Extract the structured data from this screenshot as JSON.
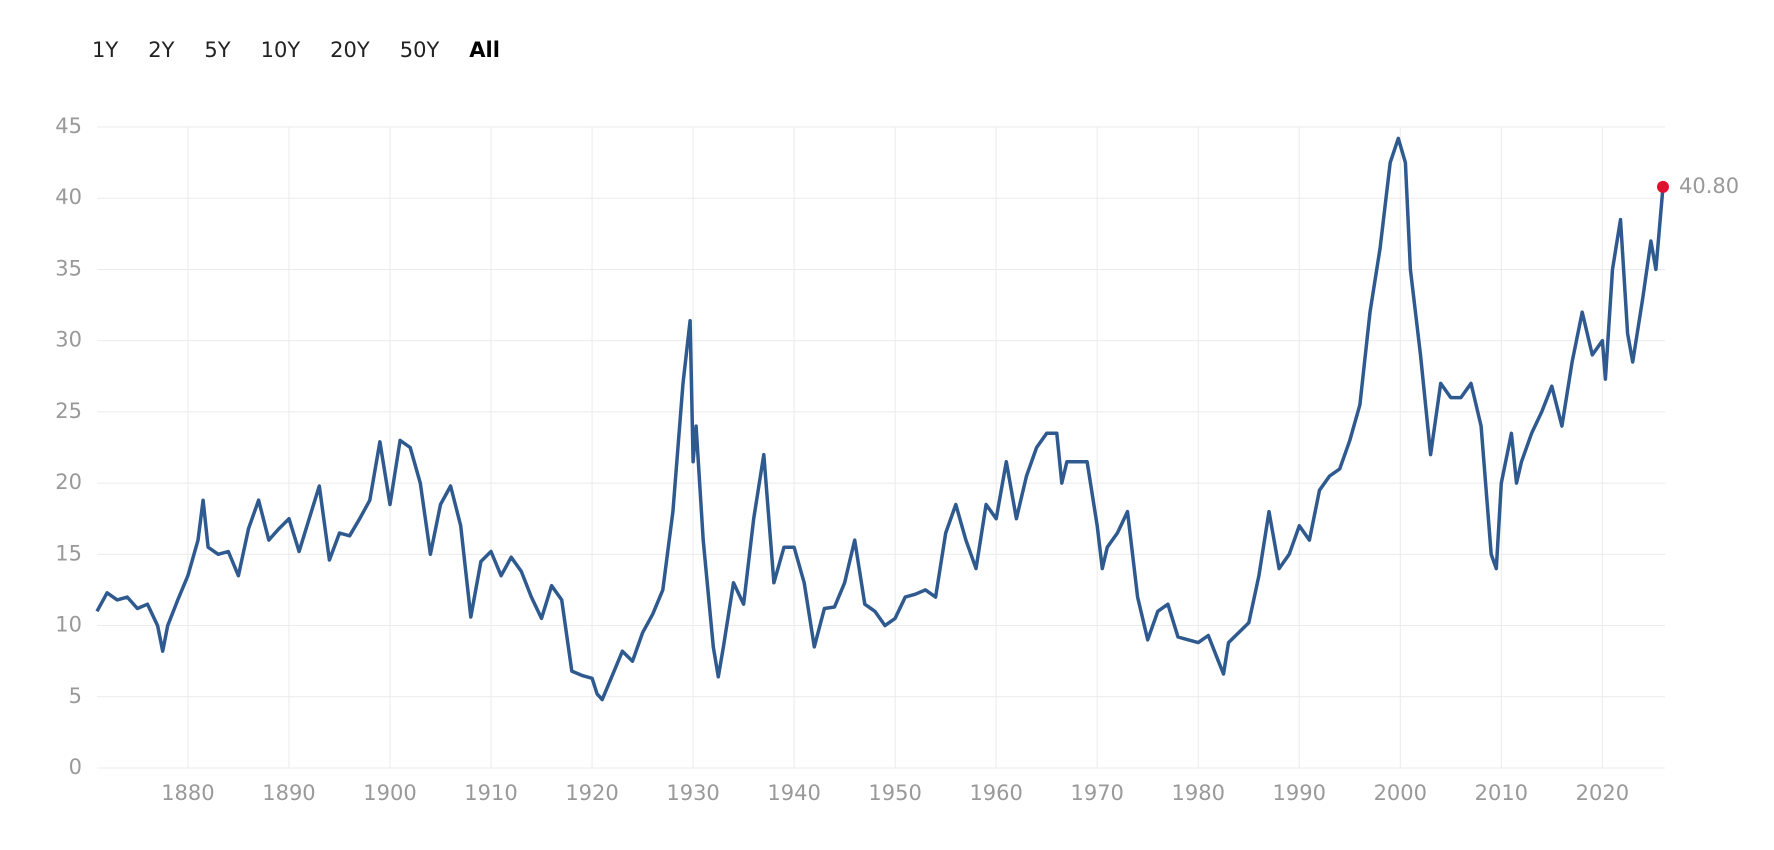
{
  "ranges": [
    "1Y",
    "2Y",
    "5Y",
    "10Y",
    "20Y",
    "50Y",
    "All"
  ],
  "active_range": "All",
  "chart_data": {
    "type": "line",
    "color": "#2f5a8f",
    "marker_color": "#e0102f",
    "grid": true,
    "last_value_label": "40.80",
    "xlim": [
      1871,
      2026.2
    ],
    "xticks": [
      1880,
      1890,
      1900,
      1910,
      1920,
      1930,
      1940,
      1950,
      1960,
      1970,
      1980,
      1990,
      2000,
      2010,
      2020
    ],
    "ylim": [
      0,
      45
    ],
    "yticks": [
      0,
      5,
      10,
      15,
      20,
      25,
      30,
      35,
      40,
      45
    ],
    "x": [
      1871,
      1872,
      1873,
      1874,
      1875,
      1876,
      1877,
      1877.5,
      1878,
      1879,
      1880,
      1881,
      1881.5,
      1882,
      1883,
      1884,
      1885,
      1886,
      1887,
      1888,
      1889,
      1890,
      1891,
      1892,
      1893,
      1894,
      1895,
      1896,
      1897,
      1898,
      1899,
      1900,
      1901,
      1902,
      1903,
      1904,
      1905,
      1906,
      1907,
      1908,
      1909,
      1910,
      1911,
      1912,
      1913,
      1914,
      1915,
      1916,
      1917,
      1918,
      1919,
      1920,
      1920.5,
      1921,
      1922,
      1923,
      1924,
      1925,
      1926,
      1927,
      1928,
      1929,
      1929.7,
      1930,
      1930.3,
      1931,
      1932,
      1932.5,
      1933,
      1934,
      1935,
      1936,
      1937,
      1938,
      1939,
      1940,
      1941,
      1942,
      1943,
      1944,
      1945,
      1946,
      1947,
      1948,
      1949,
      1950,
      1951,
      1952,
      1953,
      1954,
      1955,
      1956,
      1957,
      1958,
      1959,
      1960,
      1961,
      1962,
      1963,
      1964,
      1965,
      1966,
      1966.5,
      1967,
      1968,
      1969,
      1970,
      1970.5,
      1971,
      1972,
      1973,
      1974,
      1975,
      1976,
      1977,
      1978,
      1979,
      1980,
      1981,
      1982,
      1982.5,
      1983,
      1984,
      1985,
      1986,
      1987,
      1988,
      1989,
      1990,
      1991,
      1992,
      1993,
      1994,
      1995,
      1996,
      1997,
      1998,
      1999,
      1999.8,
      2000.5,
      2001,
      2002,
      2003,
      2004,
      2005,
      2006,
      2007,
      2008,
      2009,
      2009.5,
      2010,
      2011,
      2011.5,
      2012,
      2013,
      2014,
      2015,
      2016,
      2017,
      2018,
      2019,
      2020,
      2020.3,
      2021,
      2021.8,
      2022.5,
      2023,
      2024,
      2024.8,
      2025.3,
      2026
    ],
    "values": [
      11,
      12.3,
      11.8,
      12,
      11.2,
      11.5,
      10,
      8.2,
      10,
      11.8,
      13.5,
      16,
      18.8,
      15.5,
      15,
      15.2,
      13.5,
      16.8,
      18.8,
      16,
      16.8,
      17.5,
      15.2,
      17.5,
      19.8,
      14.6,
      16.5,
      16.3,
      17.5,
      18.8,
      22.9,
      18.5,
      23,
      22.5,
      20,
      15,
      18.5,
      19.8,
      17,
      10.6,
      14.5,
      15.2,
      13.5,
      14.8,
      13.8,
      12,
      10.5,
      12.8,
      11.8,
      6.8,
      6.5,
      6.3,
      5.2,
      4.8,
      6.5,
      8.2,
      7.5,
      9.5,
      10.8,
      12.5,
      18,
      27,
      31.4,
      21.5,
      24,
      16,
      8.5,
      6.4,
      8.5,
      13,
      11.5,
      17.5,
      22,
      13,
      15.5,
      15.5,
      13,
      8.5,
      11.2,
      11.3,
      13,
      16,
      11.5,
      11,
      10,
      10.5,
      12,
      12.2,
      12.5,
      12,
      16.5,
      18.5,
      16,
      14,
      18.5,
      17.5,
      21.5,
      17.5,
      20.5,
      22.5,
      23.5,
      23.5,
      20,
      21.5,
      21.5,
      21.5,
      17,
      14,
      15.5,
      16.5,
      18,
      12,
      9,
      11,
      11.5,
      9.2,
      9,
      8.8,
      9.3,
      7.5,
      6.6,
      8.8,
      9.5,
      10.2,
      13.5,
      18,
      14,
      15,
      17,
      16,
      19.5,
      20.5,
      21,
      23,
      25.5,
      32,
      36.5,
      42.5,
      44.2,
      42.5,
      35,
      29,
      22,
      27,
      26,
      26,
      27,
      24,
      15,
      14,
      20,
      23.5,
      20,
      21.5,
      23.5,
      25,
      26.8,
      24,
      28.5,
      32,
      29,
      30,
      27.3,
      35,
      38.5,
      30.5,
      28.5,
      33,
      37,
      35,
      40.8
    ]
  }
}
